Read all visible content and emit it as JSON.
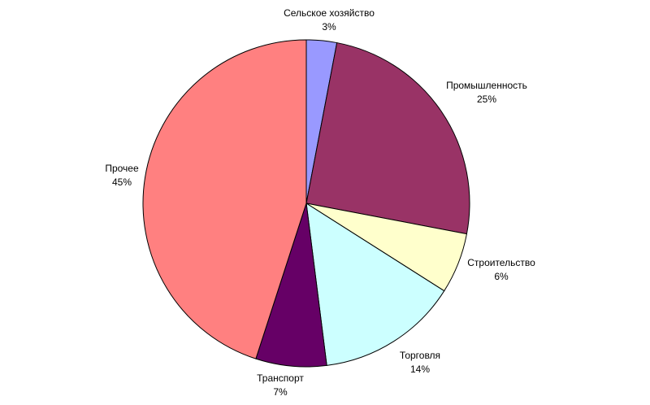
{
  "chart_data": {
    "type": "pie",
    "slices": [
      {
        "label": "Сельское хозяйство",
        "value": 3,
        "value_label": "3%",
        "color": "#9999ff"
      },
      {
        "label": "Промышленность",
        "value": 25,
        "value_label": "25%",
        "color": "#993366"
      },
      {
        "label": "Строительство",
        "value": 6,
        "value_label": "6%",
        "color": "#ffffcc"
      },
      {
        "label": "Торговля",
        "value": 14,
        "value_label": "14%",
        "color": "#ccffff"
      },
      {
        "label": "Транспорт",
        "value": 7,
        "value_label": "7%",
        "color": "#660066"
      },
      {
        "label": "Прочее",
        "value": 45,
        "value_label": "45%",
        "color": "#ff8080"
      }
    ],
    "start_angle_deg": 0,
    "direction": "clockwise",
    "legend": "none"
  }
}
